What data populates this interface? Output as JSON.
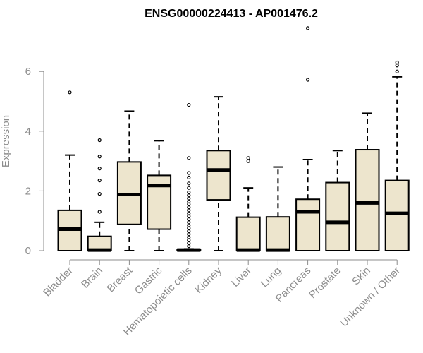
{
  "chart_data": {
    "type": "box",
    "title": "ENSG00000224413 - AP001476.2",
    "xlabel": "",
    "ylabel": "Expression",
    "ylim": [
      0,
      7.5
    ],
    "yticks": [
      0,
      2,
      4,
      6
    ],
    "grid": false,
    "legend": "none",
    "colors": {
      "box_fill": "#ede5cd",
      "box_stroke": "#000000",
      "axis": "#8c8c8c"
    },
    "categories": [
      "Bladder",
      "Brain",
      "Breast",
      "Gastric",
      "Hematopoietic cells",
      "Kidney",
      "Liver",
      "Lung",
      "Pancreas",
      "Prostate",
      "Skin",
      "Unknown / Other"
    ],
    "boxes": [
      {
        "category": "Bladder",
        "whisker_low": 0,
        "q1": 0,
        "median": 0.72,
        "q3": 1.35,
        "whisker_high": 3.2,
        "outliers": [
          5.3
        ]
      },
      {
        "category": "Brain",
        "whisker_low": 0,
        "q1": 0,
        "median": 0.02,
        "q3": 0.48,
        "whisker_high": 0.95,
        "outliers": [
          1.3,
          1.9,
          2.35,
          2.75,
          3.15,
          3.7
        ]
      },
      {
        "category": "Breast",
        "whisker_low": 0,
        "q1": 0.88,
        "median": 1.88,
        "q3": 2.97,
        "whisker_high": 4.67,
        "outliers": []
      },
      {
        "category": "Gastric",
        "whisker_low": 0,
        "q1": 0.72,
        "median": 2.18,
        "q3": 2.52,
        "whisker_high": 3.68,
        "outliers": []
      },
      {
        "category": "Hematopoietic cells",
        "whisker_low": 0,
        "q1": 0,
        "median": 0.02,
        "q3": 0.04,
        "whisker_high": 0.06,
        "outliers": [
          0.15,
          0.25,
          0.35,
          0.45,
          0.55,
          0.65,
          0.75,
          0.85,
          0.95,
          1.05,
          1.15,
          1.25,
          1.35,
          1.45,
          1.55,
          1.65,
          1.75,
          1.85,
          1.95,
          2.1,
          2.25,
          2.45,
          2.6,
          3.1,
          4.88
        ]
      },
      {
        "category": "Kidney",
        "whisker_low": 0,
        "q1": 1.7,
        "median": 2.7,
        "q3": 3.35,
        "whisker_high": 5.15,
        "outliers": []
      },
      {
        "category": "Liver",
        "whisker_low": 0,
        "q1": 0,
        "median": 0.02,
        "q3": 1.12,
        "whisker_high": 2.1,
        "outliers": [
          3.0,
          3.1
        ]
      },
      {
        "category": "Lung",
        "whisker_low": 0,
        "q1": 0,
        "median": 0.02,
        "q3": 1.13,
        "whisker_high": 2.8,
        "outliers": []
      },
      {
        "category": "Pancreas",
        "whisker_low": 0,
        "q1": 0,
        "median": 1.3,
        "q3": 1.72,
        "whisker_high": 3.05,
        "outliers": [
          5.72,
          7.45
        ]
      },
      {
        "category": "Prostate",
        "whisker_low": 0,
        "q1": 0,
        "median": 0.95,
        "q3": 2.28,
        "whisker_high": 3.35,
        "outliers": []
      },
      {
        "category": "Skin",
        "whisker_low": 0,
        "q1": 0,
        "median": 1.6,
        "q3": 3.38,
        "whisker_high": 4.6,
        "outliers": []
      },
      {
        "category": "Unknown / Other",
        "whisker_low": 0,
        "q1": 0,
        "median": 1.25,
        "q3": 2.35,
        "whisker_high": 5.82,
        "outliers": [
          6.0,
          6.2,
          6.3
        ]
      }
    ]
  }
}
